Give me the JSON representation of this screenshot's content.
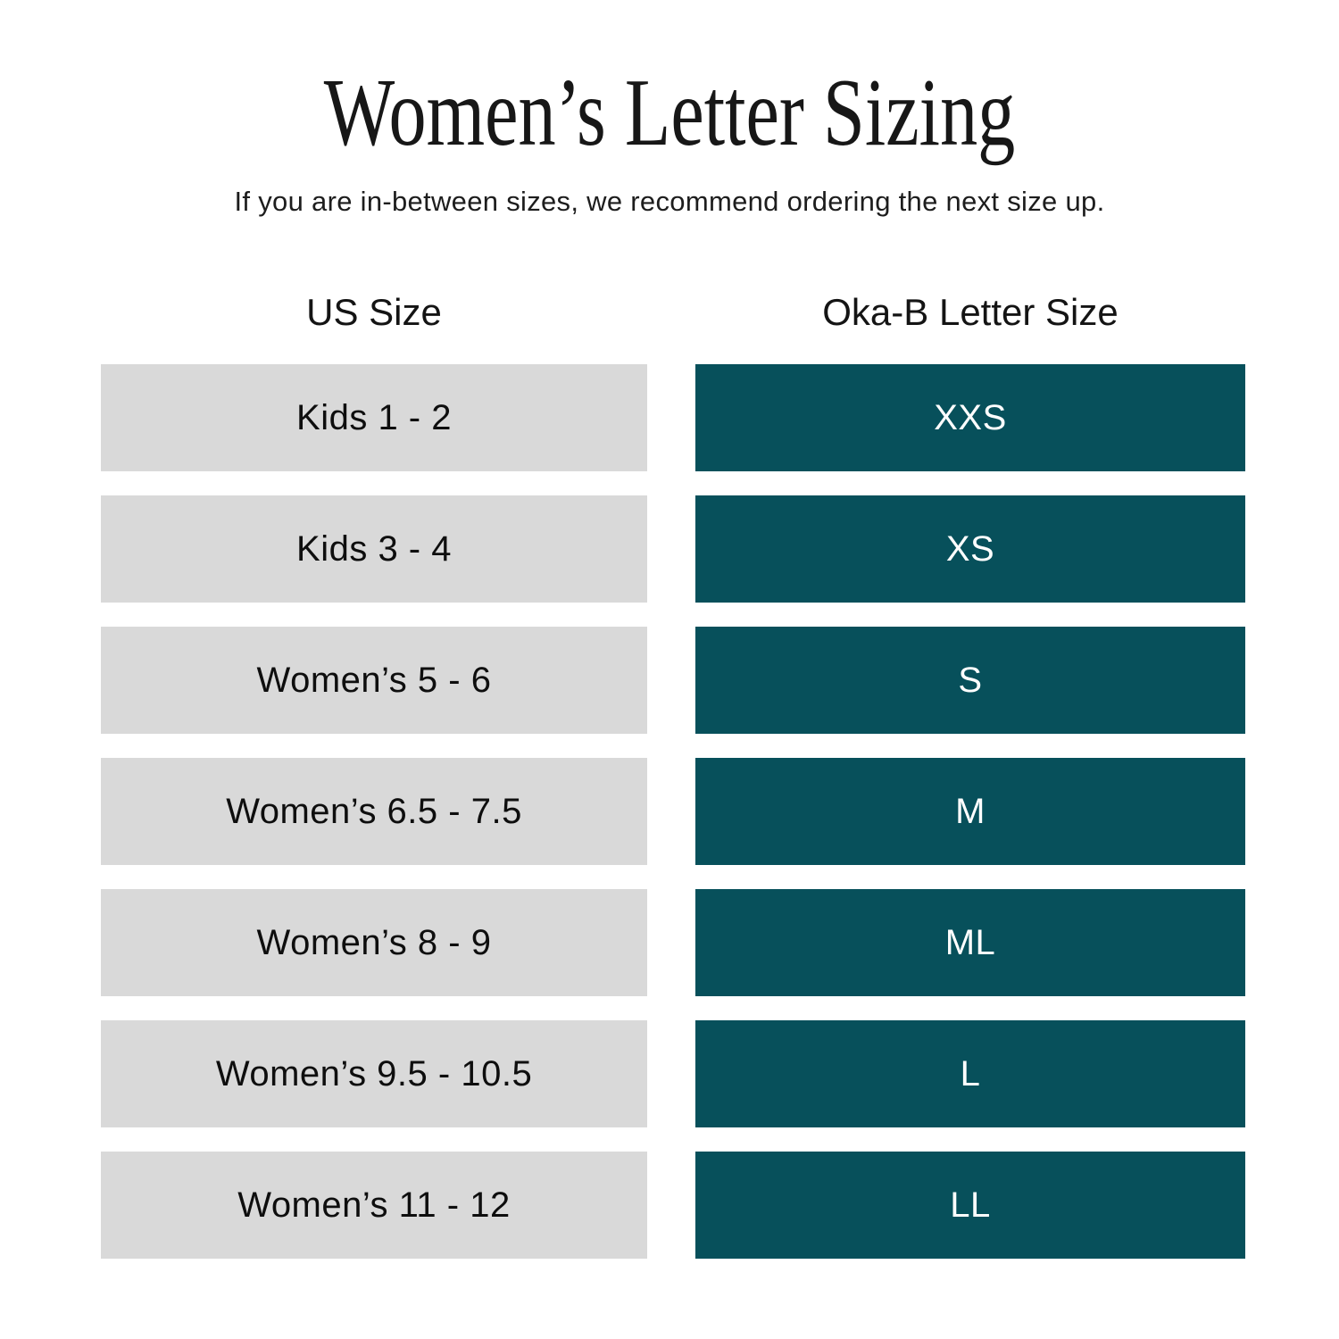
{
  "header": {
    "title": "Women’s Letter Sizing",
    "subtitle": "If you are in-between sizes, we recommend ordering the next size up."
  },
  "table": {
    "columns": [
      "US Size",
      "Oka-B Letter Size"
    ],
    "rows": [
      {
        "us": "Kids 1 - 2",
        "letter": "XXS"
      },
      {
        "us": "Kids 3 - 4",
        "letter": "XS"
      },
      {
        "us": "Women’s 5 - 6",
        "letter": "S"
      },
      {
        "us": "Women’s 6.5 - 7.5",
        "letter": "M"
      },
      {
        "us": "Women’s 8 - 9",
        "letter": "ML"
      },
      {
        "us": "Women’s 9.5 - 10.5",
        "letter": "L"
      },
      {
        "us": "Women’s 11 - 12",
        "letter": "LL"
      }
    ]
  },
  "colors": {
    "us_cell_bg": "#D9D9D9",
    "us_cell_text": "#0E0E0E",
    "letter_cell_bg": "#07505B",
    "letter_cell_text": "#FFFFFF",
    "page_bg": "#FFFFFF",
    "title_text": "#171717"
  },
  "chart_data": {
    "type": "table",
    "title": "Women’s Letter Sizing",
    "subtitle": "If you are in-between sizes, we recommend ordering the next size up.",
    "columns": [
      "US Size",
      "Oka-B Letter Size"
    ],
    "rows": [
      [
        "Kids 1 - 2",
        "XXS"
      ],
      [
        "Kids 3 - 4",
        "XS"
      ],
      [
        "Women’s 5 - 6",
        "S"
      ],
      [
        "Women’s 6.5 - 7.5",
        "M"
      ],
      [
        "Women’s 8 - 9",
        "ML"
      ],
      [
        "Women’s 9.5 - 10.5",
        "L"
      ],
      [
        "Women’s 11 - 12",
        "LL"
      ]
    ],
    "layout_hints": {
      "left_column_style": "light-gray filled bars, black centered text",
      "right_column_style": "dark-teal filled bars, white centered text",
      "grid": false
    }
  }
}
